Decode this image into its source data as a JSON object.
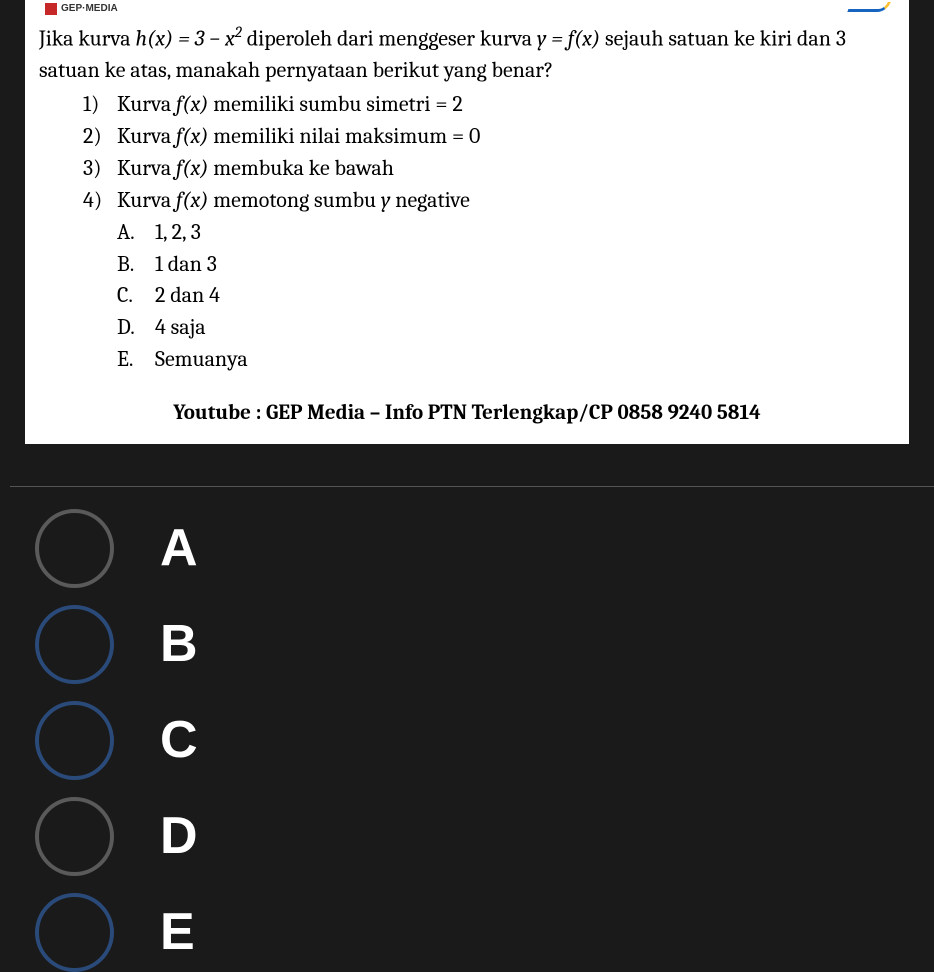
{
  "card": {
    "bg_color": "#ffffff",
    "text_color": "#000000",
    "logo_left_label": "GEP",
    "logo_left_sub": "MEDIA",
    "question_prefix": "Jika kurva ",
    "h_expr": "h(x) = 3 − x",
    "h_exp": "2",
    "question_mid": " diperoleh dari menggeser kurva ",
    "y_expr": "y = f(x)",
    "question_tail": " sejauh  satuan ke kiri dan 3 satuan ke atas, manakah pernyataan berikut yang benar?",
    "statements": [
      {
        "n": "1)",
        "pre": "Kurva ",
        "fx": "f(x)",
        "post": " memiliki sumbu simetri = 2"
      },
      {
        "n": "2)",
        "pre": "Kurva ",
        "fx": "f(x)",
        "post": " memiliki nilai maksimum = 0"
      },
      {
        "n": "3)",
        "pre": "Kurva ",
        "fx": "f(x)",
        "post": " membuka ke bawah"
      },
      {
        "n": "4)",
        "pre": "Kurva ",
        "fx": "f(x)",
        "post": " memotong sumbu ",
        "yvar": "y",
        "post2": " negative"
      }
    ],
    "options": [
      {
        "lt": "A.",
        "txt": "1, 2, 3"
      },
      {
        "lt": "B.",
        "txt": "1 dan 3"
      },
      {
        "lt": "C.",
        "txt": "2 dan 4"
      },
      {
        "lt": "D.",
        "txt": "4 saja"
      },
      {
        "lt": "E.",
        "txt": "Semuanya"
      }
    ],
    "footer": "Youtube : GEP Media – Info PTN Terlengkap/CP 0858 9240 5814"
  },
  "answers": {
    "ring_colors": [
      "#5a5a5a",
      "#2a4a7a",
      "#2a4a7a",
      "#5a5a5a",
      "#2a4a7a"
    ],
    "letters": [
      "A",
      "B",
      "C",
      "D",
      "E"
    ],
    "letter_color": "#ffffff"
  },
  "page": {
    "bg_color": "#1a1a1a",
    "divider_color": "#555555"
  }
}
